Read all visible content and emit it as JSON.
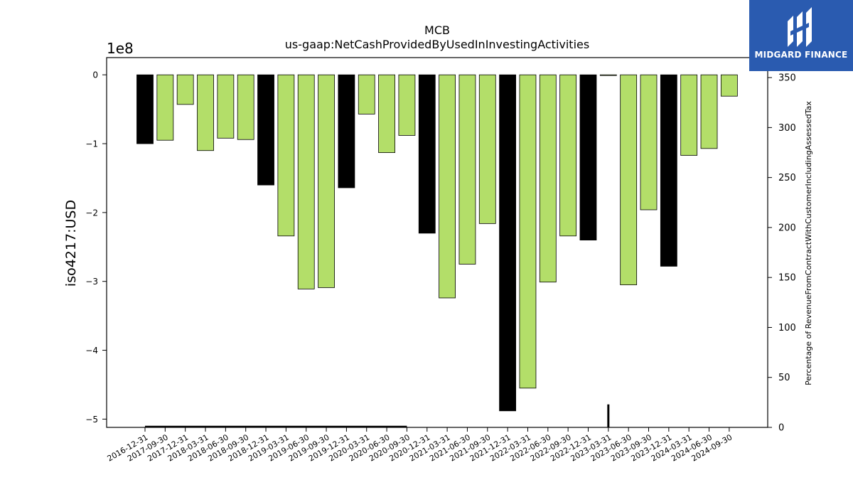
{
  "brand": {
    "name": "MIDGARD FINANCE",
    "logo_icon": "midgard-logo-icon",
    "color": "#2a5bb0"
  },
  "chart_data": {
    "type": "bar",
    "title": "MCB",
    "subtitle": "us-gaap:NetCashProvidedByUsedInInvestingActivities",
    "ylabel": "iso4217:USD",
    "y_offset_label": "1e8",
    "y2label": "Percentage of RevenueFromContractWithCustomerIncludingAssessedTax",
    "ylim": [
      -5.12,
      0.25
    ],
    "y2lim": [
      0,
      370
    ],
    "yticks": [
      0,
      -1,
      -2,
      -3,
      -4,
      -5
    ],
    "y2ticks": [
      0,
      50,
      100,
      150,
      200,
      250,
      300,
      350
    ],
    "categories": [
      "2016-12-31",
      "2017-09-30",
      "2017-12-31",
      "2018-03-31",
      "2018-06-30",
      "2018-09-30",
      "2018-12-31",
      "2019-03-31",
      "2019-06-30",
      "2019-09-30",
      "2019-12-31",
      "2020-03-31",
      "2020-06-30",
      "2020-09-30",
      "2020-12-31",
      "2021-03-31",
      "2021-06-30",
      "2021-09-30",
      "2021-12-31",
      "2022-03-31",
      "2022-06-30",
      "2022-09-30",
      "2022-12-31",
      "2023-03-31",
      "2023-06-30",
      "2023-09-30",
      "2023-12-31",
      "2024-03-31",
      "2024-06-30",
      "2024-09-30"
    ],
    "values": [
      -1.0,
      -0.95,
      -0.43,
      -1.1,
      -0.92,
      -0.94,
      -1.6,
      -2.34,
      -3.11,
      -3.09,
      -1.64,
      -0.57,
      -1.13,
      -0.88,
      -2.3,
      -3.24,
      -2.75,
      -2.16,
      -4.88,
      -4.55,
      -3.01,
      -2.34,
      -2.4,
      -0.01,
      -3.05,
      -1.96,
      -2.78,
      -1.17,
      -1.07,
      -0.31
    ],
    "annual": [
      true,
      false,
      false,
      false,
      false,
      false,
      true,
      false,
      false,
      false,
      true,
      false,
      false,
      false,
      true,
      false,
      false,
      false,
      true,
      false,
      false,
      false,
      true,
      false,
      false,
      false,
      true,
      false,
      false,
      false
    ],
    "colors": {
      "annual": "#000000",
      "quarterly": "#b3de69"
    },
    "percent_series": {
      "flat_line": {
        "from": "2016-12-31",
        "to": "2020-09-30",
        "value": 0
      },
      "spike": {
        "at": "2023-03-31",
        "value": 23
      }
    }
  }
}
